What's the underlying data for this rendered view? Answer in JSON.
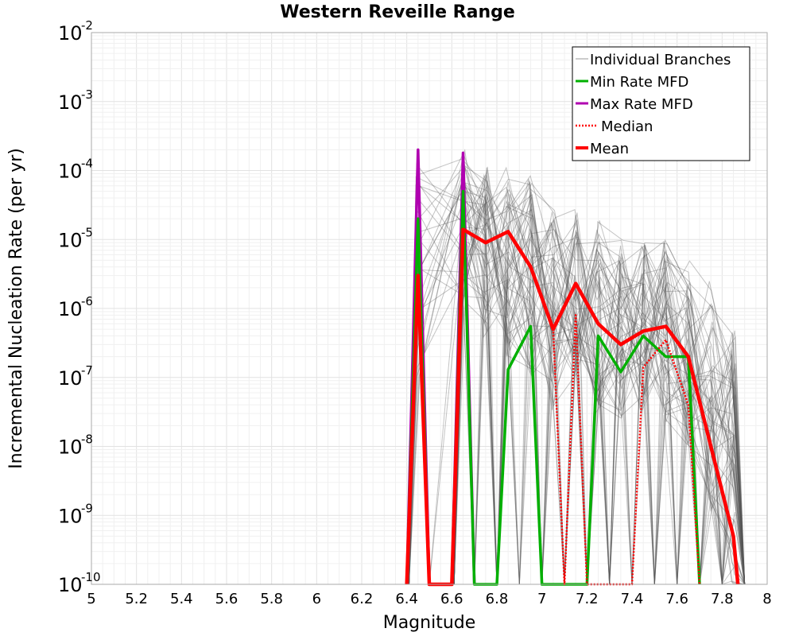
{
  "chart_data": {
    "type": "line",
    "title": "Western Reveille Range",
    "xlabel": "Magnitude",
    "ylabel": "Incremental Nucleation Rate (per yr)",
    "xlim": [
      5,
      8
    ],
    "ylim": [
      1e-10,
      0.01
    ],
    "y_scale": "log",
    "grid": true,
    "legend_position": "top-right",
    "x_ticks": [
      "5",
      "5.2",
      "5.4",
      "5.6",
      "5.8",
      "6",
      "6.2",
      "6.4",
      "6.6",
      "6.8",
      "7",
      "7.2",
      "7.4",
      "7.6",
      "7.8",
      "8"
    ],
    "y_ticks": [
      {
        "base": "10",
        "exp": "-10",
        "value": 1e-10
      },
      {
        "base": "10",
        "exp": "-9",
        "value": 1e-09
      },
      {
        "base": "10",
        "exp": "-8",
        "value": 1e-08
      },
      {
        "base": "10",
        "exp": "-7",
        "value": 1e-07
      },
      {
        "base": "10",
        "exp": "-6",
        "value": 1e-06
      },
      {
        "base": "10",
        "exp": "-5",
        "value": 1e-05
      },
      {
        "base": "10",
        "exp": "-4",
        "value": 0.0001
      },
      {
        "base": "10",
        "exp": "-3",
        "value": 0.001
      },
      {
        "base": "10",
        "exp": "-2",
        "value": 0.01
      }
    ],
    "series": [
      {
        "name": "Individual Branches",
        "color": "#555555",
        "style": "thin",
        "note_count_drawn": 60,
        "envelope": {
          "x": [
            6.45,
            6.65,
            6.75,
            6.85,
            6.95,
            7.05,
            7.15,
            7.25,
            7.35,
            7.45,
            7.55,
            7.65,
            7.75,
            7.85
          ],
          "upper": [
            0.00015,
            0.0002,
            0.00012,
            0.00011,
            9e-05,
            3e-05,
            3e-05,
            2e-05,
            1e-05,
            1e-05,
            1e-05,
            5e-06,
            2.5e-06,
            5e-07
          ],
          "lower": [
            1e-07,
            1e-06,
            3e-07,
            2e-07,
            1e-07,
            3e-08,
            1e-07,
            3e-08,
            2e-08,
            3e-08,
            2e-08,
            1e-08,
            1e-09,
            1e-10
          ]
        }
      },
      {
        "name": "Min Rate MFD",
        "color": "#00b000",
        "style": "solid",
        "points": [
          [
            6.4,
            1e-10
          ],
          [
            6.45,
            2e-05
          ],
          [
            6.5,
            1e-10
          ],
          [
            6.6,
            1e-10
          ],
          [
            6.65,
            5e-05
          ],
          [
            6.7,
            1e-10
          ],
          [
            6.8,
            1e-10
          ],
          [
            6.85,
            1.3e-07
          ],
          [
            6.95,
            5.5e-07
          ],
          [
            7.0,
            1e-10
          ],
          [
            7.2,
            1e-10
          ],
          [
            7.25,
            4e-07
          ],
          [
            7.35,
            1.2e-07
          ],
          [
            7.45,
            4e-07
          ],
          [
            7.55,
            2e-07
          ],
          [
            7.65,
            2e-07
          ],
          [
            7.7,
            1e-10
          ]
        ]
      },
      {
        "name": "Max Rate MFD",
        "color": "#b000b0",
        "style": "solid",
        "points": [
          [
            6.4,
            1e-10
          ],
          [
            6.45,
            0.0002
          ],
          [
            6.5,
            1e-10
          ],
          [
            6.6,
            1e-10
          ],
          [
            6.65,
            0.00018
          ],
          [
            6.7,
            1e-10
          ]
        ]
      },
      {
        "name": "Median",
        "color": "#ff0000",
        "style": "dotted",
        "points": [
          [
            6.4,
            1e-10
          ],
          [
            6.45,
            3e-06
          ],
          [
            6.5,
            1e-10
          ],
          [
            6.6,
            1e-10
          ],
          [
            6.65,
            1.4e-05
          ],
          [
            6.75,
            9e-06
          ],
          [
            6.85,
            1.3e-05
          ],
          [
            6.95,
            4e-06
          ],
          [
            7.05,
            5e-07
          ],
          [
            7.1,
            1e-10
          ],
          [
            7.15,
            8e-07
          ],
          [
            7.2,
            1e-10
          ],
          [
            7.4,
            1e-10
          ],
          [
            7.45,
            1.4e-07
          ],
          [
            7.55,
            3.5e-07
          ],
          [
            7.65,
            4e-08
          ],
          [
            7.7,
            1e-10
          ]
        ]
      },
      {
        "name": "Mean",
        "color": "#ff0000",
        "style": "thick",
        "points": [
          [
            6.4,
            1e-10
          ],
          [
            6.45,
            3e-06
          ],
          [
            6.5,
            1e-10
          ],
          [
            6.6,
            1e-10
          ],
          [
            6.65,
            1.4e-05
          ],
          [
            6.75,
            9e-06
          ],
          [
            6.85,
            1.3e-05
          ],
          [
            6.95,
            4e-06
          ],
          [
            7.05,
            5e-07
          ],
          [
            7.15,
            2.3e-06
          ],
          [
            7.25,
            6e-07
          ],
          [
            7.35,
            3e-07
          ],
          [
            7.45,
            4.7e-07
          ],
          [
            7.55,
            5.5e-07
          ],
          [
            7.65,
            2e-07
          ],
          [
            7.85,
            5e-10
          ],
          [
            7.87,
            1e-10
          ]
        ]
      }
    ]
  }
}
